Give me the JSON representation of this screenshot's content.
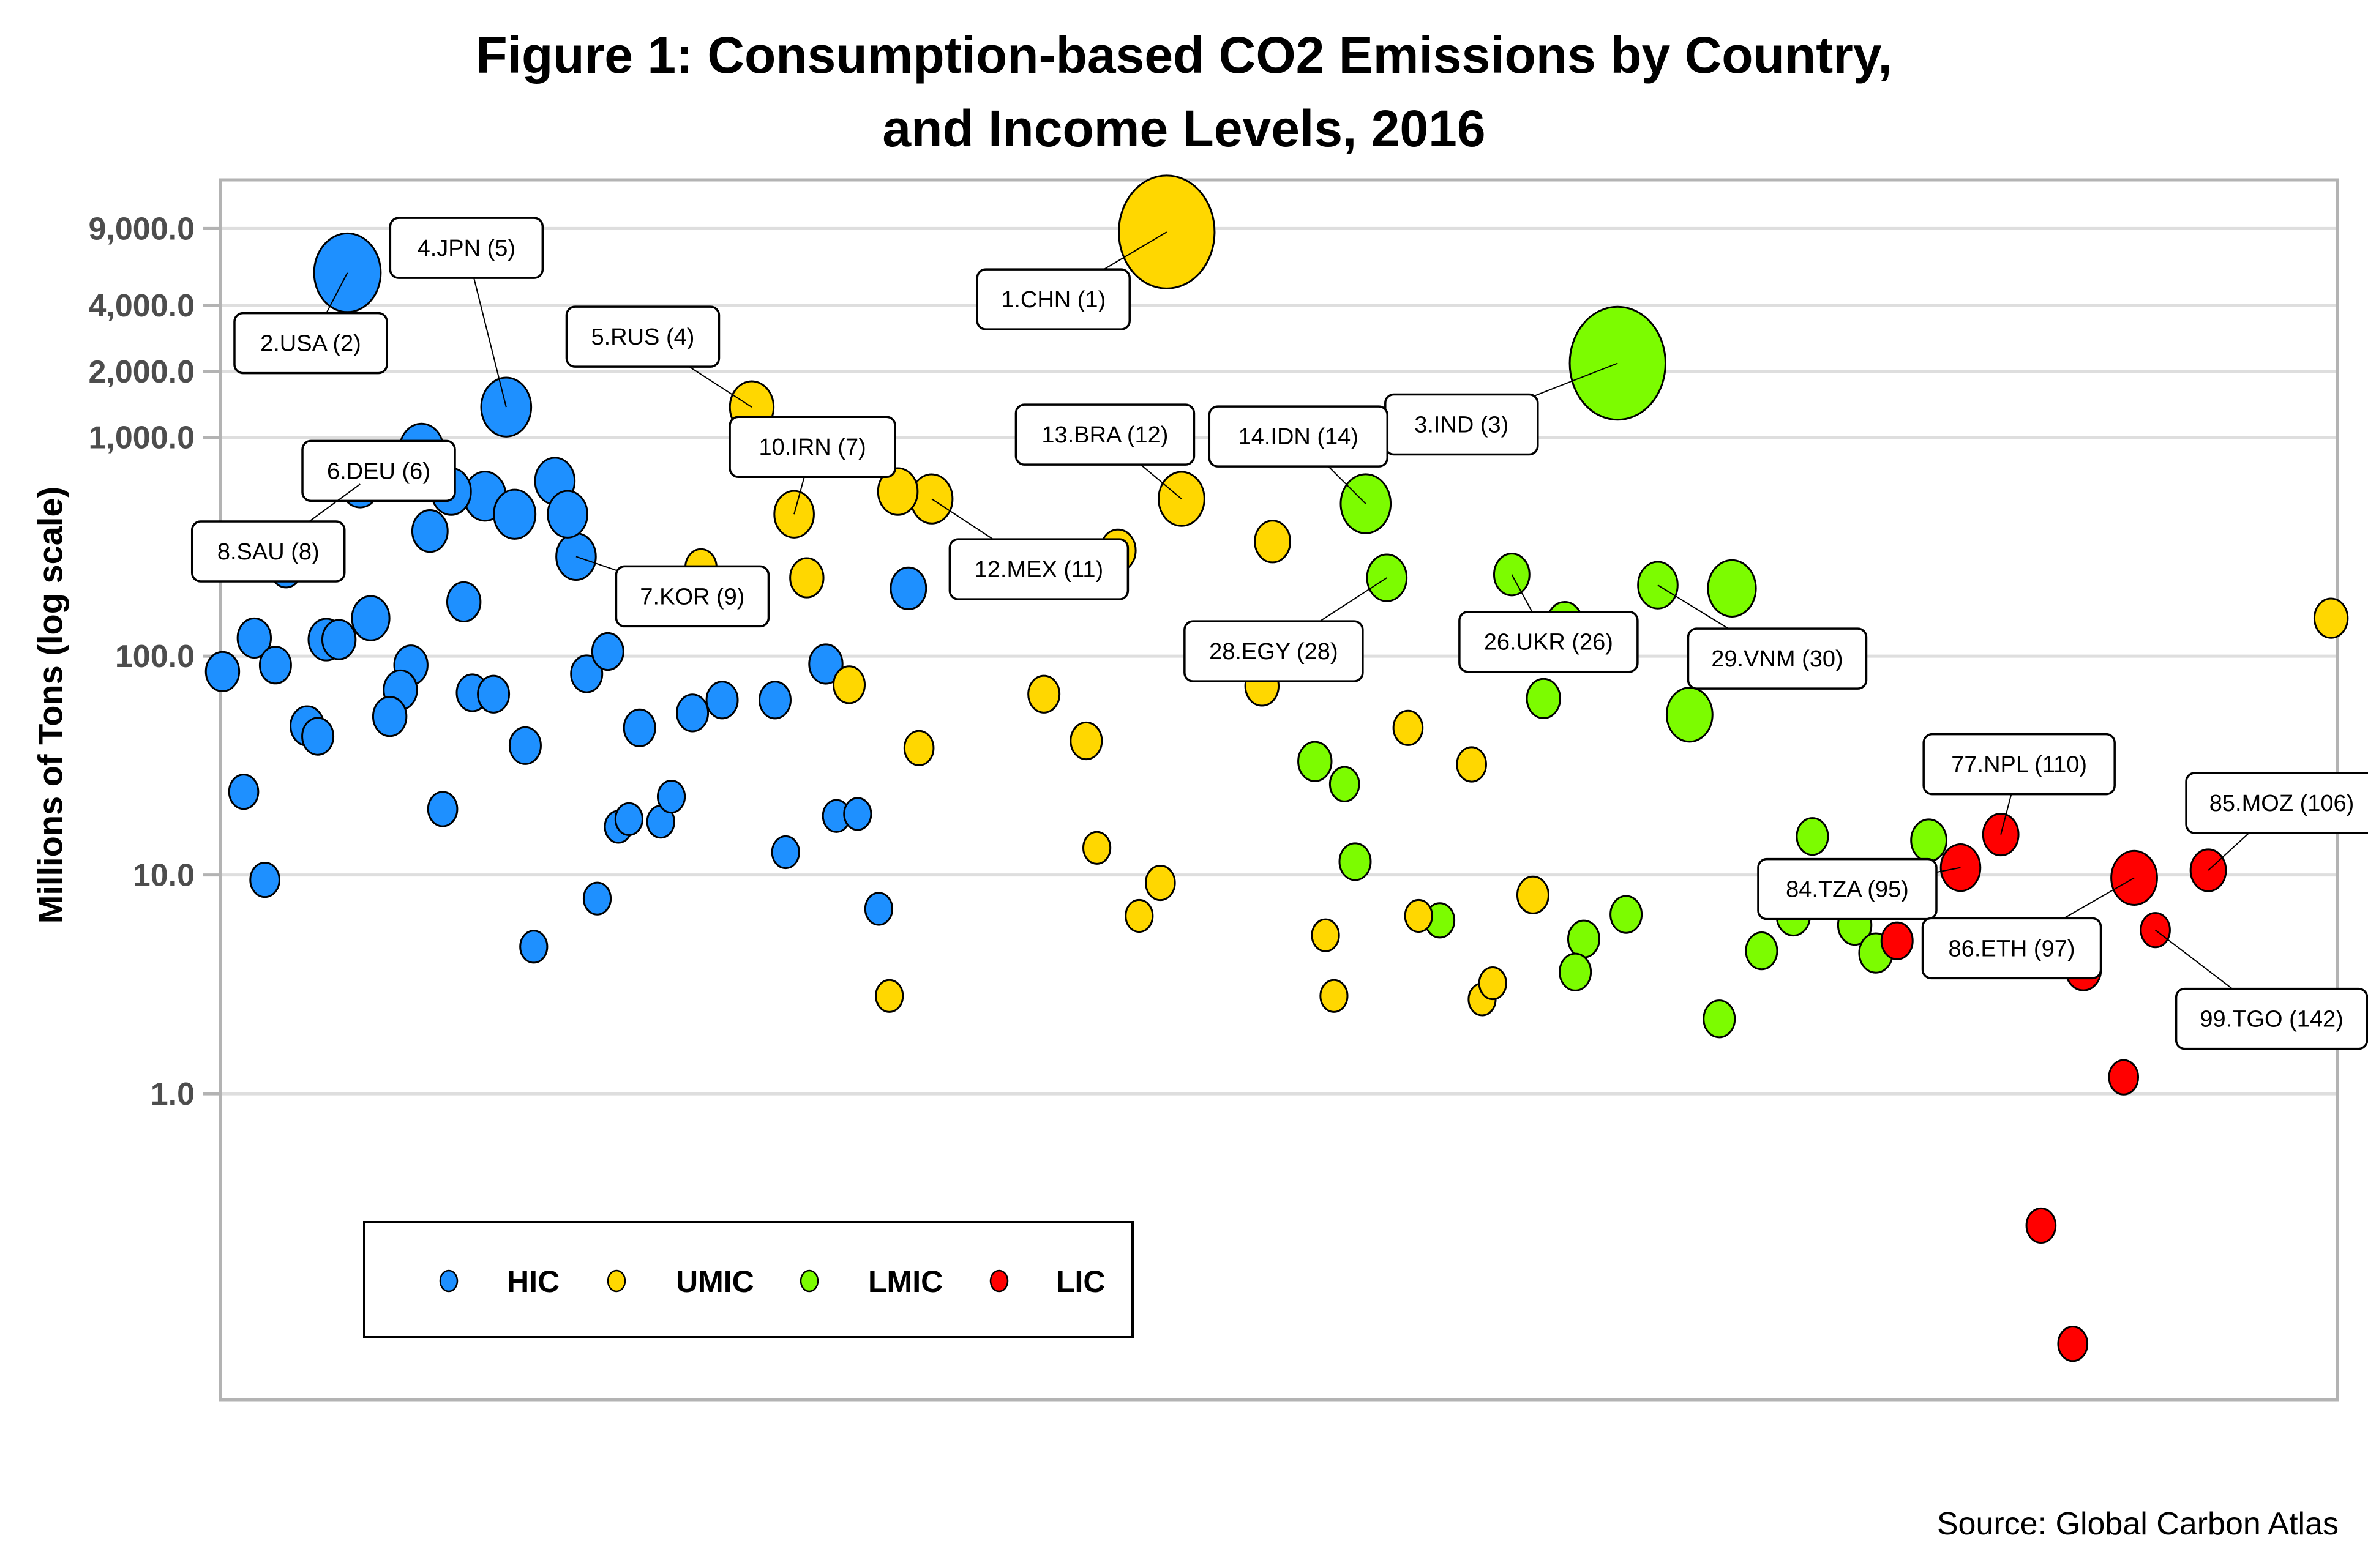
{
  "chart_data": {
    "type": "scatter",
    "title": [
      "Figure 1: Consumption-based CO2 Emissions by Country,",
      "and Income Levels, 2016"
    ],
    "xlabel": "",
    "ylabel": "Millions of Tons (log scale)",
    "y_scale": "log",
    "ylim": [
      0.04,
      15000
    ],
    "xlim": [
      0,
      100
    ],
    "y_ticks": [
      1,
      10,
      100,
      1000,
      2000,
      4000,
      9000
    ],
    "y_tick_labels": [
      "1.0",
      "10.0",
      "100.0",
      "1,000.0",
      "2,000.0",
      "4,000.0",
      "9,000.0"
    ],
    "grid": "horizontal",
    "legend": {
      "placement": "bottom-left",
      "entries": [
        {
          "key": "HIC",
          "label": "HIC",
          "color": "#1E90FF"
        },
        {
          "key": "UMIC",
          "label": "UMIC",
          "color": "#FFD700"
        },
        {
          "key": "LMIC",
          "label": "LMIC",
          "color": "#7CFC00"
        },
        {
          "key": "LIC",
          "label": "LIC",
          "color": "#FF0000"
        }
      ]
    },
    "source": "Source: Global Carbon Atlas",
    "points": [
      {
        "g": "HIC",
        "x": 6.0,
        "y": 5650,
        "s": 3.2,
        "label": "2.USA (2)"
      },
      {
        "g": "HIC",
        "x": 13.5,
        "y": 1374,
        "s": 2.4,
        "label": "4.JPN (5)"
      },
      {
        "g": "HIC",
        "x": 9.5,
        "y": 880,
        "s": 2.1,
        "label": "6.DEU (6)"
      },
      {
        "g": "HIC",
        "x": 6.6,
        "y": 611,
        "s": 1.9,
        "label": "8.SAU (8)"
      },
      {
        "g": "HIC",
        "x": 16.8,
        "y": 285,
        "s": 1.9,
        "label": "7.KOR (9)"
      },
      {
        "g": "HIC",
        "x": 3.1,
        "y": 250,
        "s": 1.5
      },
      {
        "g": "HIC",
        "x": 10.9,
        "y": 565,
        "s": 1.9
      },
      {
        "g": "HIC",
        "x": 12.5,
        "y": 538,
        "s": 2.0
      },
      {
        "g": "HIC",
        "x": 13.9,
        "y": 445,
        "s": 2.0
      },
      {
        "g": "HIC",
        "x": 15.8,
        "y": 631,
        "s": 1.9
      },
      {
        "g": "HIC",
        "x": 16.4,
        "y": 445,
        "s": 1.9
      },
      {
        "g": "HIC",
        "x": 9.9,
        "y": 373,
        "s": 1.7
      },
      {
        "g": "HIC",
        "x": 11.5,
        "y": 177,
        "s": 1.6
      },
      {
        "g": "HIC",
        "x": 7.1,
        "y": 149,
        "s": 1.8
      },
      {
        "g": "HIC",
        "x": 1.6,
        "y": 121,
        "s": 1.6
      },
      {
        "g": "HIC",
        "x": 5.0,
        "y": 119,
        "s": 1.7
      },
      {
        "g": "HIC",
        "x": 5.6,
        "y": 119,
        "s": 1.6
      },
      {
        "g": "HIC",
        "x": 0.1,
        "y": 85,
        "s": 1.6
      },
      {
        "g": "HIC",
        "x": 2.6,
        "y": 91,
        "s": 1.5
      },
      {
        "g": "HIC",
        "x": 9.0,
        "y": 91,
        "s": 1.6
      },
      {
        "g": "HIC",
        "x": 8.5,
        "y": 70,
        "s": 1.6
      },
      {
        "g": "HIC",
        "x": 8.0,
        "y": 53,
        "s": 1.6
      },
      {
        "g": "HIC",
        "x": 11.9,
        "y": 68,
        "s": 1.5
      },
      {
        "g": "HIC",
        "x": 12.9,
        "y": 67,
        "s": 1.5
      },
      {
        "g": "HIC",
        "x": 4.1,
        "y": 48,
        "s": 1.6
      },
      {
        "g": "HIC",
        "x": 4.6,
        "y": 43,
        "s": 1.5
      },
      {
        "g": "HIC",
        "x": 1.1,
        "y": 24,
        "s": 1.4
      },
      {
        "g": "HIC",
        "x": 2.1,
        "y": 9.5,
        "s": 1.4
      },
      {
        "g": "HIC",
        "x": 10.5,
        "y": 20,
        "s": 1.4
      },
      {
        "g": "HIC",
        "x": 14.4,
        "y": 39,
        "s": 1.5
      },
      {
        "g": "HIC",
        "x": 14.8,
        "y": 4.7,
        "s": 1.3
      },
      {
        "g": "HIC",
        "x": 17.3,
        "y": 83,
        "s": 1.5
      },
      {
        "g": "HIC",
        "x": 18.3,
        "y": 105,
        "s": 1.5
      },
      {
        "g": "HIC",
        "x": 17.8,
        "y": 7.8,
        "s": 1.3
      },
      {
        "g": "HIC",
        "x": 18.8,
        "y": 16.6,
        "s": 1.3
      },
      {
        "g": "HIC",
        "x": 19.3,
        "y": 18,
        "s": 1.3
      },
      {
        "g": "HIC",
        "x": 19.8,
        "y": 47,
        "s": 1.5
      },
      {
        "g": "HIC",
        "x": 20.8,
        "y": 17.5,
        "s": 1.3
      },
      {
        "g": "HIC",
        "x": 21.3,
        "y": 22.8,
        "s": 1.3
      },
      {
        "g": "HIC",
        "x": 22.3,
        "y": 55,
        "s": 1.5
      },
      {
        "g": "HIC",
        "x": 23.7,
        "y": 63,
        "s": 1.5
      },
      {
        "g": "HIC",
        "x": 26.2,
        "y": 63,
        "s": 1.5
      },
      {
        "g": "HIC",
        "x": 26.7,
        "y": 12.7,
        "s": 1.3
      },
      {
        "g": "HIC",
        "x": 29.1,
        "y": 18.6,
        "s": 1.3
      },
      {
        "g": "HIC",
        "x": 30.1,
        "y": 19,
        "s": 1.3
      },
      {
        "g": "HIC",
        "x": 28.6,
        "y": 92,
        "s": 1.6
      },
      {
        "g": "HIC",
        "x": 31.1,
        "y": 7.0,
        "s": 1.3
      },
      {
        "g": "HIC",
        "x": 32.5,
        "y": 204,
        "s": 1.7
      },
      {
        "g": "UMIC",
        "x": 44.7,
        "y": 8670,
        "s": 4.6,
        "label": "1.CHN (1)"
      },
      {
        "g": "UMIC",
        "x": 25.1,
        "y": 1374,
        "s": 2.1,
        "label": "5.RUS (4)"
      },
      {
        "g": "UMIC",
        "x": 27.1,
        "y": 445,
        "s": 1.9,
        "label": "10.IRN (7)"
      },
      {
        "g": "UMIC",
        "x": 32.0,
        "y": 565,
        "s": 1.9
      },
      {
        "g": "UMIC",
        "x": 33.6,
        "y": 523,
        "s": 2.0,
        "label": "12.MEX (11)"
      },
      {
        "g": "UMIC",
        "x": 27.7,
        "y": 228,
        "s": 1.6
      },
      {
        "g": "UMIC",
        "x": 22.7,
        "y": 254,
        "s": 1.5
      },
      {
        "g": "UMIC",
        "x": 29.7,
        "y": 74,
        "s": 1.5
      },
      {
        "g": "UMIC",
        "x": 33.0,
        "y": 38,
        "s": 1.4
      },
      {
        "g": "UMIC",
        "x": 31.6,
        "y": 2.8,
        "s": 1.3
      },
      {
        "g": "UMIC",
        "x": 45.4,
        "y": 523,
        "s": 2.2,
        "label": "13.BRA (12)"
      },
      {
        "g": "UMIC",
        "x": 42.4,
        "y": 304,
        "s": 1.7
      },
      {
        "g": "UMIC",
        "x": 49.7,
        "y": 334,
        "s": 1.7
      },
      {
        "g": "UMIC",
        "x": 38.9,
        "y": 67,
        "s": 1.5
      },
      {
        "g": "UMIC",
        "x": 40.9,
        "y": 41,
        "s": 1.5
      },
      {
        "g": "UMIC",
        "x": 41.4,
        "y": 13.3,
        "s": 1.3
      },
      {
        "g": "UMIC",
        "x": 43.4,
        "y": 6.5,
        "s": 1.3
      },
      {
        "g": "UMIC",
        "x": 44.4,
        "y": 9.2,
        "s": 1.4
      },
      {
        "g": "UMIC",
        "x": 49.2,
        "y": 73,
        "s": 1.6
      },
      {
        "g": "UMIC",
        "x": 52.2,
        "y": 5.3,
        "s": 1.3
      },
      {
        "g": "UMIC",
        "x": 52.6,
        "y": 2.8,
        "s": 1.3
      },
      {
        "g": "UMIC",
        "x": 56.1,
        "y": 47,
        "s": 1.4
      },
      {
        "g": "UMIC",
        "x": 59.1,
        "y": 32,
        "s": 1.4
      },
      {
        "g": "UMIC",
        "x": 56.6,
        "y": 6.5,
        "s": 1.3
      },
      {
        "g": "UMIC",
        "x": 59.6,
        "y": 2.7,
        "s": 1.3
      },
      {
        "g": "UMIC",
        "x": 60.1,
        "y": 3.2,
        "s": 1.3
      },
      {
        "g": "UMIC",
        "x": 62.0,
        "y": 8.1,
        "s": 1.5
      },
      {
        "g": "UMIC",
        "x": 99.7,
        "y": 149,
        "s": 1.6
      },
      {
        "g": "LMIC",
        "x": 66.0,
        "y": 2180,
        "s": 4.6,
        "label": "3.IND (3)"
      },
      {
        "g": "LMIC",
        "x": 54.1,
        "y": 497,
        "s": 2.4,
        "label": "14.IDN (14)"
      },
      {
        "g": "LMIC",
        "x": 55.1,
        "y": 228,
        "s": 1.9,
        "label": "28.EGY (28)"
      },
      {
        "g": "LMIC",
        "x": 61.0,
        "y": 236,
        "s": 1.7,
        "label": "26.UKR (26)"
      },
      {
        "g": "LMIC",
        "x": 63.5,
        "y": 142,
        "s": 1.7
      },
      {
        "g": "LMIC",
        "x": 62.5,
        "y": 64,
        "s": 1.6
      },
      {
        "g": "LMIC",
        "x": 67.9,
        "y": 211,
        "s": 1.9,
        "label": "29.VNM (30)"
      },
      {
        "g": "LMIC",
        "x": 71.4,
        "y": 204,
        "s": 2.3
      },
      {
        "g": "LMIC",
        "x": 69.4,
        "y": 54,
        "s": 2.2
      },
      {
        "g": "LMIC",
        "x": 76.6,
        "y": 108,
        "s": 1.6
      },
      {
        "g": "LMIC",
        "x": 51.7,
        "y": 33,
        "s": 1.6
      },
      {
        "g": "LMIC",
        "x": 53.1,
        "y": 26,
        "s": 1.4
      },
      {
        "g": "LMIC",
        "x": 53.6,
        "y": 11.5,
        "s": 1.5
      },
      {
        "g": "LMIC",
        "x": 57.6,
        "y": 6.2,
        "s": 1.4
      },
      {
        "g": "LMIC",
        "x": 64.4,
        "y": 5.1,
        "s": 1.5
      },
      {
        "g": "LMIC",
        "x": 64.0,
        "y": 3.6,
        "s": 1.5
      },
      {
        "g": "LMIC",
        "x": 66.4,
        "y": 6.6,
        "s": 1.5
      },
      {
        "g": "LMIC",
        "x": 70.8,
        "y": 2.2,
        "s": 1.5
      },
      {
        "g": "LMIC",
        "x": 72.8,
        "y": 4.5,
        "s": 1.5
      },
      {
        "g": "LMIC",
        "x": 74.3,
        "y": 6.5,
        "s": 1.6
      },
      {
        "g": "LMIC",
        "x": 77.2,
        "y": 5.9,
        "s": 1.6
      },
      {
        "g": "LMIC",
        "x": 78.2,
        "y": 4.4,
        "s": 1.6
      },
      {
        "g": "LMIC",
        "x": 77.7,
        "y": 9.5,
        "s": 1.5
      },
      {
        "g": "LMIC",
        "x": 75.2,
        "y": 15,
        "s": 1.5
      },
      {
        "g": "LMIC",
        "x": 80.7,
        "y": 14.4,
        "s": 1.7
      },
      {
        "g": "LIC",
        "x": 84.1,
        "y": 15.3,
        "s": 1.7,
        "label": "77.NPL (110)"
      },
      {
        "g": "LIC",
        "x": 82.2,
        "y": 10.8,
        "s": 1.9,
        "label": "84.TZA (95)"
      },
      {
        "g": "LIC",
        "x": 90.4,
        "y": 9.7,
        "s": 2.2,
        "label": "86.ETH (97)"
      },
      {
        "g": "LIC",
        "x": 93.9,
        "y": 10.5,
        "s": 1.7,
        "label": "85.MOZ (106)"
      },
      {
        "g": "LIC",
        "x": 91.4,
        "y": 5.6,
        "s": 1.4,
        "label": "99.TGO (142)"
      },
      {
        "g": "LIC",
        "x": 79.2,
        "y": 5.0,
        "s": 1.5
      },
      {
        "g": "LIC",
        "x": 88.0,
        "y": 3.7,
        "s": 1.7
      },
      {
        "g": "LIC",
        "x": 89.9,
        "y": 1.19,
        "s": 1.4
      },
      {
        "g": "LIC",
        "x": 86.0,
        "y": 0.25,
        "s": 1.4
      },
      {
        "g": "LIC",
        "x": 87.5,
        "y": 0.072,
        "s": 1.4
      }
    ]
  }
}
